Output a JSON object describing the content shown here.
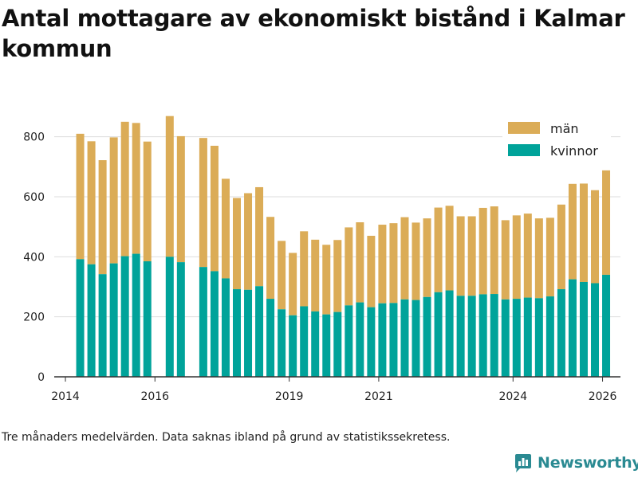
{
  "title": "Antal mottagare av ekonomiskt bistånd i Kalmar kommun",
  "note": "Tre månaders medelvärden. Data saknas ibland på grund av statistikssekretess.",
  "brand": "Newsworthy",
  "colors": {
    "men": "#dbac57",
    "women": "#00a39a",
    "grid": "#dddddd",
    "axis": "#333333",
    "brand": "#2a8a92"
  },
  "icons": {
    "logo": "bar-chart-logo-icon"
  },
  "chart_data": {
    "type": "bar",
    "stacked": true,
    "title": "Antal mottagare av ekonomiskt bistånd i Kalmar kommun",
    "xlabel": "",
    "ylabel": "",
    "ylim": [
      0,
      900
    ],
    "yticks": [
      0,
      200,
      400,
      600,
      800
    ],
    "xlim": [
      2013.75,
      2026.4
    ],
    "xticks": [
      2014,
      2016,
      2019,
      2021,
      2024,
      2026
    ],
    "legend_position": "top-right",
    "x": [
      2014.33,
      2014.58,
      2014.83,
      2015.08,
      2015.33,
      2015.58,
      2015.83,
      2016.33,
      2016.58,
      2017.08,
      2017.33,
      2017.58,
      2017.83,
      2018.08,
      2018.33,
      2018.58,
      2018.83,
      2019.08,
      2019.33,
      2019.58,
      2019.83,
      2020.08,
      2020.33,
      2020.58,
      2020.83,
      2021.08,
      2021.33,
      2021.58,
      2021.83,
      2022.08,
      2022.33,
      2022.58,
      2022.83,
      2023.08,
      2023.33,
      2023.58,
      2023.83,
      2024.08,
      2024.33,
      2024.58,
      2024.83,
      2025.08,
      2025.33,
      2025.58,
      2025.83,
      2026.08
    ],
    "series": [
      {
        "name": "kvinnor",
        "values": [
          392,
          375,
          342,
          378,
          402,
          410,
          385,
          400,
          382,
          366,
          352,
          328,
          292,
          290,
          302,
          260,
          225,
          205,
          235,
          218,
          208,
          216,
          238,
          248,
          232,
          245,
          246,
          258,
          256,
          266,
          282,
          288,
          270,
          270,
          275,
          276,
          258,
          260,
          264,
          262,
          268,
          292,
          325,
          316,
          312,
          340
        ]
      },
      {
        "name": "män",
        "values": [
          418,
          410,
          380,
          420,
          448,
          436,
          399,
          469,
          420,
          430,
          418,
          332,
          304,
          322,
          330,
          273,
          228,
          208,
          250,
          239,
          232,
          240,
          260,
          267,
          238,
          262,
          266,
          274,
          258,
          262,
          282,
          282,
          265,
          265,
          288,
          292,
          264,
          278,
          280,
          266,
          262,
          282,
          318,
          328,
          310,
          348
        ]
      }
    ]
  }
}
